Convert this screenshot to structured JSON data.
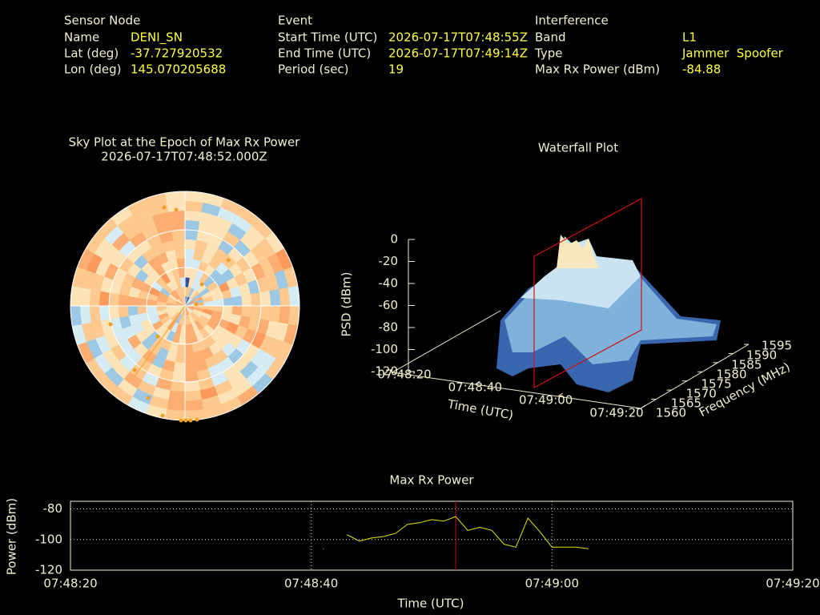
{
  "header": {
    "sensor_node": {
      "title": "Sensor Node",
      "fields": [
        {
          "label": "Name",
          "value": "DENI_SN"
        },
        {
          "label": "Lat (deg)",
          "value": "-37.727920532"
        },
        {
          "label": "Lon (deg)",
          "value": "145.070205688"
        }
      ]
    },
    "event": {
      "title": "Event",
      "fields": [
        {
          "label": "Start Time (UTC)",
          "value": "2026-07-17T07:48:55Z"
        },
        {
          "label": "End Time (UTC)",
          "value": "2026-07-17T07:49:14Z"
        },
        {
          "label": "Period (sec)",
          "value": "19"
        }
      ]
    },
    "interference": {
      "title": "Interference",
      "fields": [
        {
          "label": "Band",
          "value": "L1"
        },
        {
          "label": "Type",
          "value": "Jammer  Spoofer"
        },
        {
          "label": "Max Rx Power (dBm)",
          "value": "-84.88"
        }
      ]
    }
  },
  "sky_plot": {
    "title": "Sky Plot at the Epoch of Max Rx Power",
    "epoch": "2026-07-17T07:48:52.000Z"
  },
  "waterfall": {
    "title": "Waterfall Plot",
    "zlabel": "PSD (dBm)",
    "xlabel": "Time (UTC)",
    "ylabel": "Frequency (MHz)",
    "zticks": [
      0,
      -20,
      -40,
      -60,
      -80,
      -100,
      -120
    ],
    "xticks": [
      "07:48:20",
      "07:48:40",
      "07:49:00",
      "07:49:20"
    ],
    "yticks": [
      1560,
      1565,
      1570,
      1575,
      1580,
      1585,
      1590,
      1595
    ]
  },
  "chart_data": {
    "type": "line",
    "title": "Max Rx Power",
    "xlabel": "Time (UTC)",
    "ylabel": "Power (dBm)",
    "x": [
      "07:48:41",
      "07:48:42",
      "07:48:43",
      "07:48:44",
      "07:48:45",
      "07:48:46",
      "07:48:47",
      "07:48:48",
      "07:48:49",
      "07:48:50",
      "07:48:51",
      "07:48:52",
      "07:48:53",
      "07:48:54",
      "07:48:55",
      "07:48:56",
      "07:48:57",
      "07:48:58",
      "07:48:59",
      "07:49:00",
      "07:49:01",
      "07:49:02",
      "07:49:03"
    ],
    "values": [
      -106,
      null,
      -97,
      -101,
      -99,
      -98,
      -96,
      -90,
      -89,
      -87,
      -88,
      -85,
      -94,
      -92,
      -94,
      -103,
      -105,
      -86,
      -95,
      -105,
      -105,
      -105,
      -106
    ],
    "color": "#e6e600",
    "xlim": [
      "07:48:20",
      "07:49:20"
    ],
    "xticks": [
      "07:48:20",
      "07:48:40",
      "07:49:00",
      "07:49:20"
    ],
    "ylim": [
      -120,
      -75
    ],
    "yticks": [
      -80,
      -100,
      -120
    ],
    "grid": true,
    "marker": {
      "x": "07:48:52",
      "color": "#cc0000"
    }
  }
}
